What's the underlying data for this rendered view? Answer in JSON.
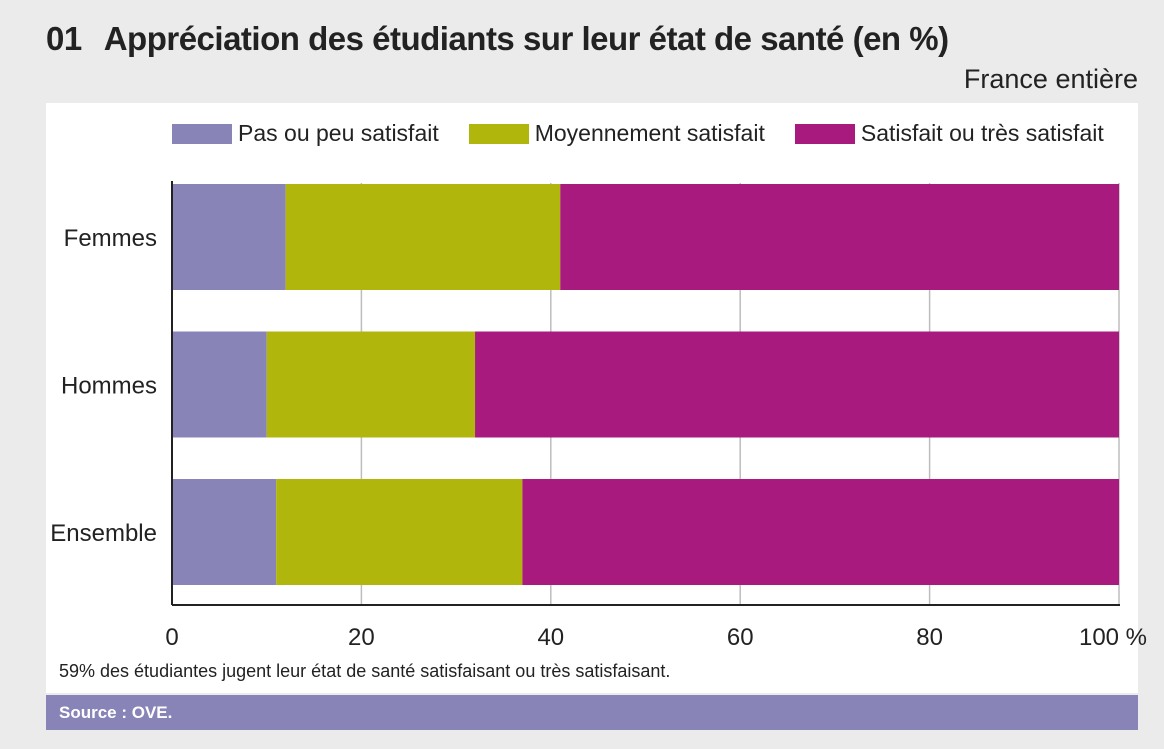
{
  "title": {
    "number": "01",
    "text": "Appréciation des étudiants sur leur état de santé (en %)"
  },
  "subtitle": "France entière",
  "note": "59% des étudiantes jugent leur état de santé satisfaisant ou très satisfaisant.",
  "source": "Source : OVE.",
  "chart_data": {
    "type": "bar",
    "orientation": "horizontal",
    "stacked": true,
    "title": "Appréciation des étudiants sur leur état de santé (en %)",
    "categories": [
      "Femmes",
      "Hommes",
      "Ensemble"
    ],
    "series": [
      {
        "name": "Pas ou peu satisfait",
        "color": "#8884b8",
        "values": [
          12,
          10,
          11
        ]
      },
      {
        "name": "Moyennement satisfait",
        "color": "#b1b60c",
        "values": [
          29,
          22,
          26
        ]
      },
      {
        "name": "Satisfait ou très satisfait",
        "color": "#a91a7e",
        "values": [
          59,
          68,
          63
        ]
      }
    ],
    "xlim": [
      0,
      100
    ],
    "xticks": [
      "0",
      "20",
      "40",
      "60",
      "80",
      "100 %"
    ],
    "xtick_values": [
      0,
      20,
      40,
      60,
      80,
      100
    ],
    "grid": true,
    "legend": "top"
  }
}
